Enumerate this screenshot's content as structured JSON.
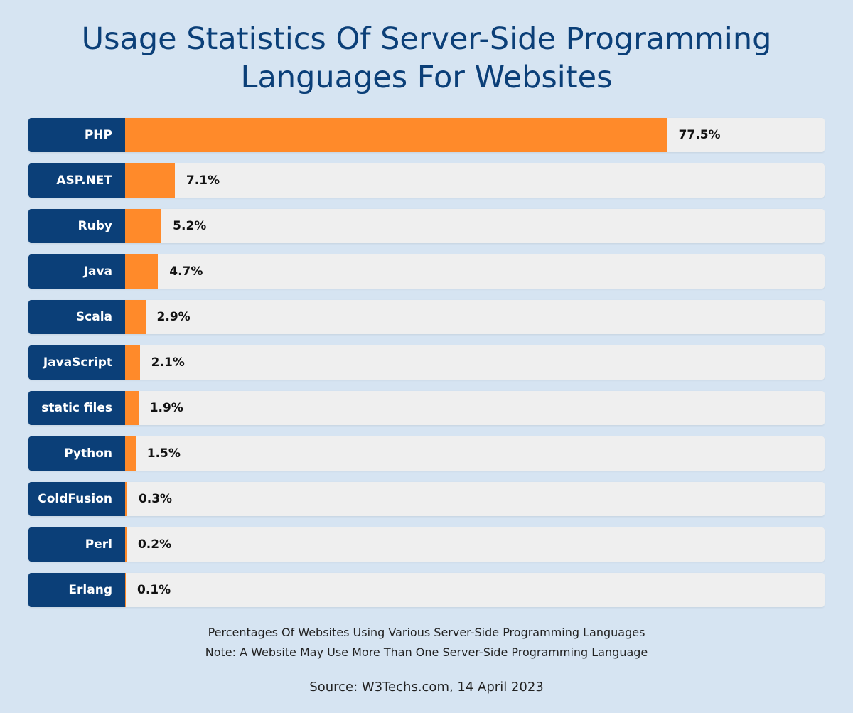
{
  "chart_data": {
    "type": "bar",
    "orientation": "horizontal",
    "title": "Usage Statistics Of Server-Side Programming Languages For Websites",
    "title_lines": [
      "Usage Statistics Of Server-Side Programming",
      "Languages For Websites"
    ],
    "categories": [
      "PHP",
      "ASP.NET",
      "Ruby",
      "Java",
      "Scala",
      "JavaScript",
      "static files",
      "Python",
      "ColdFusion",
      "Perl",
      "Erlang"
    ],
    "values": [
      77.5,
      7.1,
      5.2,
      4.7,
      2.9,
      2.1,
      1.9,
      1.5,
      0.3,
      0.2,
      0.1
    ],
    "value_labels": [
      "77.5%",
      "7.1%",
      "5.2%",
      "4.7%",
      "2.9%",
      "2.1%",
      "1.9%",
      "1.5%",
      "0.3%",
      "0.2%",
      "0.1%"
    ],
    "xlim": [
      0,
      100
    ],
    "grid": false,
    "legend": "none",
    "notes": [
      "Percentages Of Websites Using Various Server-Side Programming Languages",
      "Note: A Website May Use More Than One Server-Side Programming Language"
    ],
    "source": "Source: W3Techs.com, 14 April 2023"
  },
  "colors": {
    "background": "#d6e4f2",
    "title": "#0b3f78",
    "label_box": "#0b3f78",
    "bar": "#ff8a2a",
    "track": "#efefef"
  }
}
